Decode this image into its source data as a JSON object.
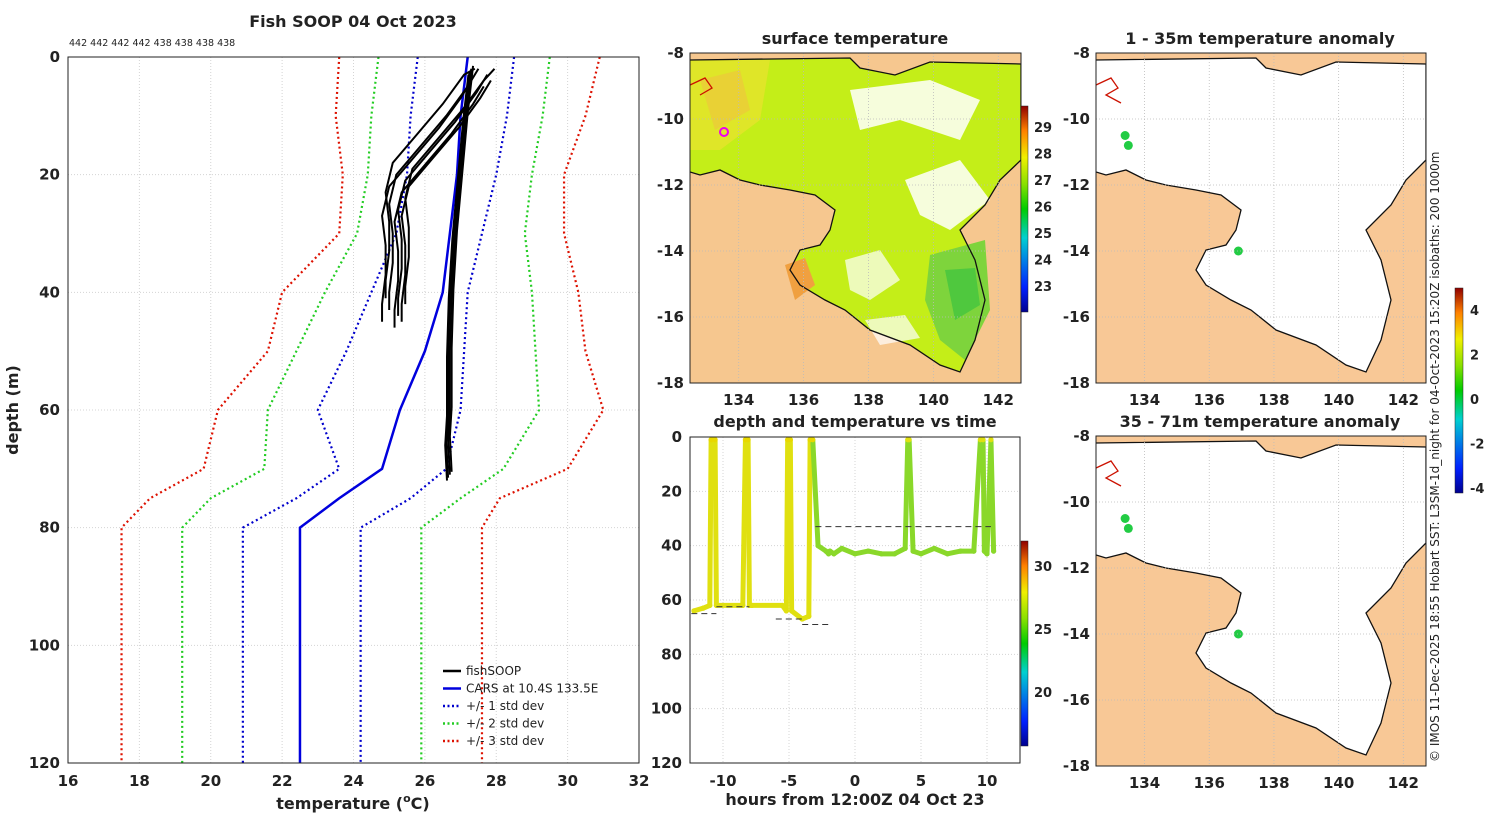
{
  "colors": {
    "fishsoop": "#000000",
    "cars": "#0000dd",
    "std1": "#0000cc",
    "std2": "#22cc22",
    "std3": "#dd1100",
    "land": "#f8c896",
    "white": "#ffffff"
  },
  "chart_data": [
    {
      "id": "profile",
      "type": "line",
      "title": "Fish SOOP 04 Oct 2023",
      "top_counts": [
        "442",
        "442",
        "442",
        "442",
        "438",
        "438",
        "438",
        "438"
      ],
      "xlabel_prefix": "temperature (",
      "xlabel_sup": "o",
      "xlabel_suffix": "C)",
      "ylabel": "depth (m)",
      "xlim": [
        16,
        32
      ],
      "ylim": [
        0,
        120
      ],
      "xticks": [
        16,
        18,
        20,
        22,
        24,
        26,
        28,
        30,
        32
      ],
      "yticks": [
        0,
        20,
        40,
        60,
        80,
        100,
        120
      ],
      "legend": [
        "fishSOOP",
        "CARS at 10.4S 133.5E",
        "+/- 1 std dev",
        "+/- 2 std dev",
        "+/- 3 std dev"
      ],
      "depths": [
        0,
        10,
        20,
        30,
        40,
        50,
        60,
        70,
        75,
        80,
        120
      ],
      "cars_mean": [
        27.2,
        27.0,
        26.9,
        26.7,
        26.5,
        26.0,
        25.3,
        24.8,
        23.6,
        22.5,
        22.5
      ],
      "std_offsets": {
        "1": [
          [
            25.8,
            28.5
          ],
          [
            25.6,
            28.3
          ],
          [
            25.5,
            28.0
          ],
          [
            25.2,
            27.6
          ],
          [
            24.5,
            27.2
          ],
          [
            23.8,
            27.1
          ],
          [
            23.0,
            27.0
          ],
          [
            23.6,
            26.6
          ],
          [
            22.4,
            25.6
          ],
          [
            20.9,
            24.2
          ],
          [
            20.9,
            24.2
          ]
        ],
        "2": [
          [
            24.7,
            29.5
          ],
          [
            24.5,
            29.3
          ],
          [
            24.4,
            29.0
          ],
          [
            24.1,
            28.8
          ],
          [
            23.2,
            29.0
          ],
          [
            22.4,
            29.1
          ],
          [
            21.6,
            29.2
          ],
          [
            21.5,
            28.2
          ],
          [
            20.0,
            27.0
          ],
          [
            19.2,
            25.9
          ],
          [
            19.2,
            25.9
          ]
        ],
        "3": [
          [
            23.6,
            30.9
          ],
          [
            23.5,
            30.5
          ],
          [
            23.7,
            29.9
          ],
          [
            23.6,
            29.9
          ],
          [
            22.0,
            30.3
          ],
          [
            21.6,
            30.5
          ],
          [
            20.2,
            31.0
          ],
          [
            19.8,
            30.0
          ],
          [
            18.3,
            28.1
          ],
          [
            17.5,
            27.6
          ],
          [
            17.5,
            27.6
          ]
        ]
      },
      "fishsoop_deep": {
        "depths": [
          2,
          10,
          20,
          30,
          40,
          50,
          60,
          65,
          71
        ],
        "temps": [
          27.3,
          27.15,
          27.0,
          26.85,
          26.75,
          26.7,
          26.7,
          26.65,
          26.7
        ]
      },
      "fishsoop_shallow": {
        "depths": [
          2,
          5,
          10,
          15,
          20,
          25,
          30,
          35,
          40,
          43
        ],
        "temps": [
          27.5,
          27.2,
          26.6,
          25.9,
          25.2,
          25.0,
          25.1,
          25.1,
          25.0,
          25.0
        ]
      }
    },
    {
      "id": "depth_time",
      "type": "scatter",
      "title": "depth and temperature vs time",
      "xlabel": "hours from 12:00Z 04 Oct 23",
      "xlim": [
        -12.5,
        12.5
      ],
      "ylim": [
        0,
        120
      ],
      "xticks": [
        -10,
        -5,
        0,
        5,
        10
      ],
      "yticks": [
        0,
        20,
        40,
        60,
        80,
        100,
        120
      ],
      "colorbar_ticks": [
        "20",
        "25",
        "30"
      ],
      "track": {
        "hours": [
          -12.2,
          -11.5,
          -11.0,
          -10.9,
          -10.6,
          -10.5,
          -8.5,
          -8.3,
          -8.1,
          -8.0,
          -7.8,
          -5.5,
          -5.2,
          -5.1,
          -4.9,
          -4.8,
          -4.0,
          -3.5,
          -3.4,
          -3.2,
          -2.8,
          -2.2,
          -2.0,
          -1.9,
          -1.6,
          -1.0,
          0,
          1,
          2,
          3,
          3.8,
          4.0,
          4.1,
          4.4,
          5,
          6,
          7,
          8,
          9,
          9.5,
          9.7,
          9.8,
          10.0,
          10.3,
          10.5
        ],
        "depths": [
          64,
          63,
          62,
          1,
          1,
          62,
          62,
          1,
          1,
          62,
          62,
          62,
          64,
          1,
          1,
          64,
          67,
          66,
          1,
          1,
          40,
          42,
          43,
          42,
          43,
          41,
          43,
          42,
          43,
          43,
          41,
          1,
          1,
          42,
          43,
          41,
          43,
          42,
          42,
          1,
          1,
          42,
          43,
          1,
          42
        ],
        "temps": [
          27,
          27,
          27,
          28,
          28,
          27,
          27,
          28,
          28,
          27,
          27,
          27,
          27,
          28,
          28,
          27,
          27,
          27,
          28,
          28,
          24,
          24,
          24,
          24,
          24,
          24,
          24,
          24,
          24,
          24,
          24,
          27,
          27,
          24,
          24,
          24,
          24,
          24,
          24,
          27,
          27,
          24,
          24,
          27,
          24
        ]
      },
      "dashed_lines": [
        {
          "x": [
            -12.4,
            -10.5
          ],
          "y": 65
        },
        {
          "x": [
            -10.5,
            -8.0
          ],
          "y": 62.5
        },
        {
          "x": [
            -6.0,
            -4.0
          ],
          "y": 67
        },
        {
          "x": [
            -4.0,
            -2.0
          ],
          "y": 69
        },
        {
          "x": [
            -3.0,
            10.3
          ],
          "y": 33
        }
      ]
    },
    {
      "id": "sst_map",
      "type": "heatmap",
      "title": "surface temperature",
      "xlim": [
        132.5,
        142.7
      ],
      "ylim": [
        -18,
        -8
      ],
      "xticks": [
        134,
        136,
        138,
        140,
        142
      ],
      "yticks": [
        -8,
        -10,
        -12,
        -14,
        -16,
        -18
      ],
      "colorbar_ticks": [
        "29",
        "28",
        "27",
        "26",
        "25",
        "24",
        "23"
      ]
    },
    {
      "id": "anom_1_35",
      "type": "heatmap",
      "title": "1 - 35m temperature anomaly",
      "xlim": [
        132.5,
        142.7
      ],
      "ylim": [
        -18,
        -8
      ],
      "xticks": [
        134,
        136,
        138,
        140,
        142
      ],
      "yticks": [
        -8,
        -10,
        -12,
        -14,
        -16,
        -18
      ],
      "points": [
        {
          "lon": 133.4,
          "lat": -10.5
        },
        {
          "lon": 133.5,
          "lat": -10.8
        },
        {
          "lon": 136.9,
          "lat": -14.0
        }
      ]
    },
    {
      "id": "anom_35_71",
      "type": "heatmap",
      "title": "35 - 71m temperature anomaly",
      "xlim": [
        132.5,
        142.7
      ],
      "ylim": [
        -18,
        -8
      ],
      "xticks": [
        134,
        136,
        138,
        140,
        142
      ],
      "yticks": [
        -8,
        -10,
        -12,
        -14,
        -16,
        -18
      ],
      "colorbar_ticks": [
        "4",
        "2",
        "0",
        "-2",
        "-4"
      ],
      "points": [
        {
          "lon": 133.4,
          "lat": -10.5
        },
        {
          "lon": 133.5,
          "lat": -10.8
        },
        {
          "lon": 136.9,
          "lat": -14.0
        }
      ]
    }
  ],
  "credit": "© IMOS 11-Dec-2025 18:55 Hobart SST: L3SM-1d_night for 04-Oct-2023 15:20Z isobaths: 200  1000m"
}
